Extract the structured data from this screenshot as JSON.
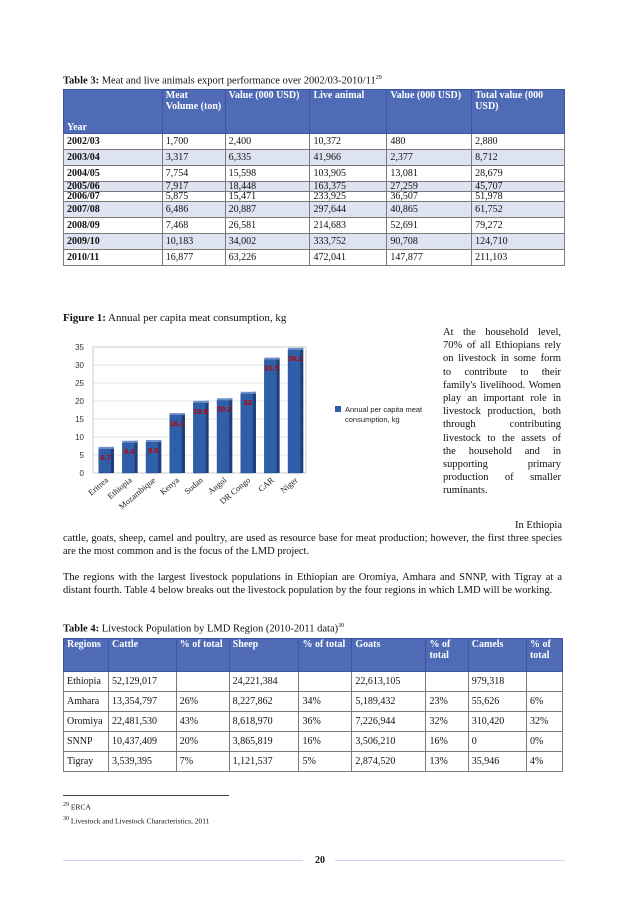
{
  "table3": {
    "caption_label": "Table 3:",
    "caption_text": "Meat and live animals export performance over 2002/03-2010/11",
    "caption_ref": "29",
    "headers": {
      "year": "Year",
      "meat_volume": "Meat Volume (ton)",
      "value1": "Value (000 USD)",
      "live_animal": "Live animal",
      "value2": "Value (000 USD)",
      "total_value": "Total value (000 USD)"
    },
    "rows": [
      [
        "2002/03",
        "1,700",
        "2,400",
        "10,372",
        "480",
        "2,880"
      ],
      [
        "2003/04",
        "3,317",
        "6,335",
        "41,966",
        "2,377",
        "8,712"
      ],
      [
        "2004/05",
        "7,754",
        "15,598",
        "103,905",
        "13,081",
        "28,679"
      ],
      [
        "2005/06",
        "7,917",
        "18,448",
        "163,375",
        "27,259",
        "45,707"
      ],
      [
        "2006/07",
        "5,875",
        "15,471",
        "233,925",
        "36,507",
        "51,978"
      ],
      [
        "2007/08",
        "6,486",
        "20,887",
        "297,644",
        "40,865",
        "61,752"
      ],
      [
        "2008/09",
        "7,468",
        "26,581",
        "214,683",
        "52,691",
        "79,272"
      ],
      [
        "2009/10",
        "10,183",
        "34,002",
        "333,752",
        "90,708",
        "124,710"
      ],
      [
        "2010/11",
        "16,877",
        "63,226",
        "472,041",
        "147,877",
        "211,103"
      ]
    ]
  },
  "figure1": {
    "caption_label": "Figure 1:",
    "caption_text": "Annual per capita meat consumption, kg"
  },
  "chart_data": {
    "type": "bar",
    "categories": [
      "Eritrea",
      "Ethiopia",
      "Mozambique",
      "Kenya",
      "Sudan",
      "Angol",
      "DR Congo",
      "CAR",
      "Niger"
    ],
    "series": [
      {
        "name": "Annual per capita meat consumption, kg",
        "values": [
          6.7,
          8.4,
          8.6,
          16.1,
          19.5,
          20.2,
          22,
          31.5,
          34.2
        ]
      }
    ],
    "data_labels": [
      "6.7",
      "8.4",
      "8.6",
      "16.1",
      "19.5",
      "20.2",
      "22",
      "31.5",
      "34.2"
    ],
    "ylim": [
      0,
      35
    ],
    "yticks": [
      "0",
      "5",
      "10",
      "15",
      "20",
      "25",
      "30",
      "35"
    ],
    "grid": true,
    "legend": "right",
    "colors": {
      "bar": "#2f5fa8",
      "label": "#c00000"
    }
  },
  "side_paragraph": "At the household level, 70% of all Ethiopians rely on livestock in some form to contribute to their family's livelihood. Women play an important role in livestock production, both through contributing livestock to the assets of the household and in supporting primary production of smaller ruminants.",
  "side_tail": "In Ethiopia",
  "paragraph_cont": "cattle, goats, sheep, camel and poultry, are used as resource base for meat production; however, the first three species are the most common and is the focus of the LMD project.",
  "paragraph2": "The regions with the largest livestock populations in Ethiopian are Oromiya, Amhara and SNNP, with Tigray at a distant fourth. Table 4 below breaks out the livestock population by the four regions in which LMD will be working.",
  "table4": {
    "caption_label": "Table 4:",
    "caption_text": "Livestock Population by LMD Region (2010-2011 data)",
    "caption_ref": "30",
    "headers": [
      "Regions",
      "Cattle",
      "% of total",
      "Sheep",
      "% of total",
      "Goats",
      "% of total",
      "Camels",
      "% of total"
    ],
    "rows": [
      [
        "Ethiopia",
        "52,129,017",
        "",
        "24,221,384",
        "",
        "22,613,105",
        "",
        "979,318",
        ""
      ],
      [
        "Amhara",
        "13,354,797",
        "26%",
        "8,227,862",
        "34%",
        "5,189,432",
        "23%",
        "55,626",
        "6%"
      ],
      [
        "Oromiya",
        "22,481,530",
        "43%",
        "8,618,970",
        "36%",
        "7,226,944",
        "32%",
        "310,420",
        "32%"
      ],
      [
        "SNNP",
        "10,437,409",
        "20%",
        "3,865,819",
        "16%",
        "3,506,210",
        "16%",
        "0",
        "0%"
      ],
      [
        "Tigray",
        "3,539,395",
        "7%",
        "1,121,537",
        "5%",
        "2,874,520",
        "13%",
        "35,946",
        "4%"
      ]
    ]
  },
  "footnotes": [
    {
      "num": "29",
      "text": "ERCA"
    },
    {
      "num": "30",
      "text": "Livestock and Livestock Characteristics, 2011"
    }
  ],
  "page_number": "20"
}
